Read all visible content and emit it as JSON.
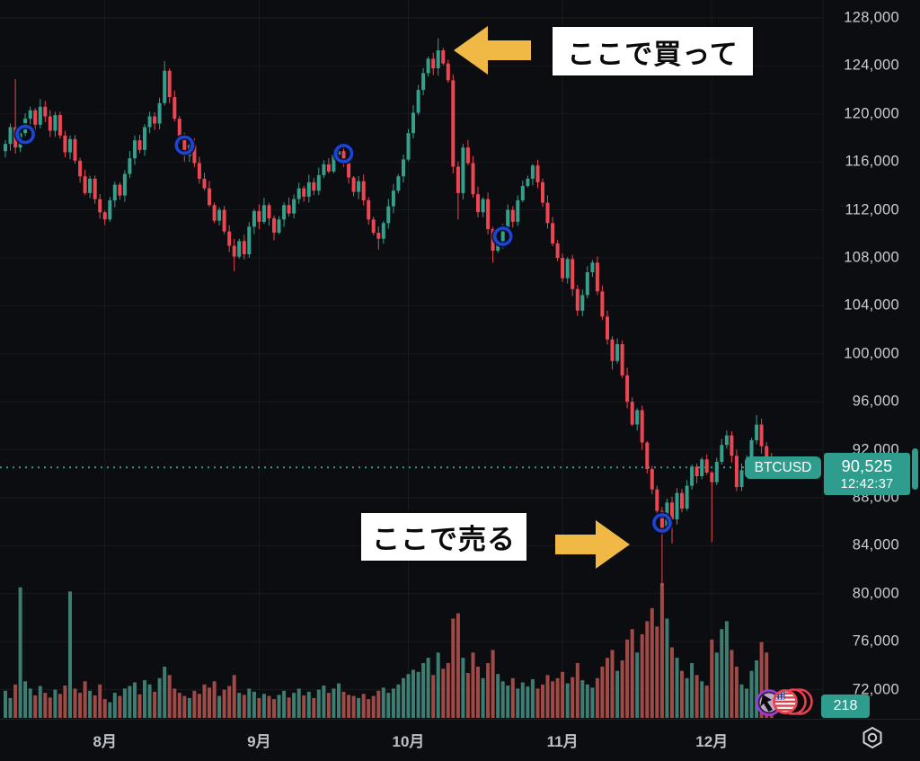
{
  "colors": {
    "background": "#0c0d10",
    "grid": "rgba(255,255,255,0.055)",
    "candle_up": "#34a08c",
    "candle_down": "#ec4652",
    "volume_up": "#3e7d72",
    "volume_down": "#9f4a47",
    "accent_teal": "#2e9d8e",
    "marker_blue": "#1c46d2",
    "arrow_gold": "#f0b946",
    "axis_text": "#c9ccd1",
    "price_line": "#2e9d8e"
  },
  "price_label": {
    "symbol": "BTCUSD",
    "price": "90,525",
    "countdown": "12:42:37"
  },
  "volume_badge": "218",
  "annotations": {
    "buy": "ここで買って",
    "sell": "ここで売る"
  },
  "chart_data": {
    "type": "candlestick",
    "symbol": "BTCUSD",
    "current_price": 90525,
    "current_volume": 218,
    "grid": true,
    "y_axis": {
      "min": 72000,
      "max": 128000,
      "tick_step": 4000,
      "tick_labels": [
        "128,000",
        "124,000",
        "120,000",
        "116,000",
        "112,000",
        "108,000",
        "104,000",
        "100,000",
        "96,000",
        "92,000",
        "88,000",
        "84,000",
        "80,000",
        "76,000",
        "72,000"
      ]
    },
    "x_axis": {
      "month_labels": [
        {
          "label": "8月",
          "day": 20
        },
        {
          "label": "9月",
          "day": 51
        },
        {
          "label": "10月",
          "day": 81
        },
        {
          "label": "11月",
          "day": 112
        },
        {
          "label": "12月",
          "day": 142
        }
      ]
    },
    "closes": [
      117500,
      118900,
      117200,
      118400,
      119600,
      120300,
      119100,
      120600,
      119800,
      118600,
      119900,
      118200,
      116800,
      117900,
      116100,
      114800,
      113400,
      114600,
      112900,
      111800,
      111200,
      112800,
      114100,
      113200,
      115000,
      116300,
      117800,
      117000,
      118900,
      119800,
      119200,
      120900,
      123600,
      121400,
      119600,
      118100,
      116500,
      117400,
      115900,
      114600,
      113800,
      112400,
      111100,
      112000,
      110200,
      109000,
      108100,
      109400,
      108300,
      110600,
      111900,
      111000,
      112400,
      111300,
      110100,
      111200,
      112400,
      111700,
      112900,
      113800,
      113100,
      114300,
      113600,
      114900,
      115800,
      115200,
      116600,
      116900,
      115900,
      114700,
      113500,
      114400,
      112800,
      111200,
      110100,
      109600,
      110900,
      112300,
      113600,
      114800,
      116200,
      118400,
      120100,
      122000,
      123400,
      124600,
      123800,
      125300,
      124200,
      122800,
      115600,
      113400,
      117200,
      115900,
      113300,
      111800,
      112900,
      110400,
      108600,
      109200,
      110500,
      112000,
      111000,
      112800,
      114000,
      114600,
      115700,
      114300,
      112600,
      110900,
      109200,
      108000,
      106300,
      107900,
      105400,
      103600,
      104900,
      106800,
      107600,
      105200,
      103100,
      101200,
      99400,
      100800,
      98200,
      96000,
      94100,
      95300,
      92600,
      90400,
      88700,
      86900,
      85300,
      87600,
      86200,
      88400,
      87100,
      89000,
      90600,
      89800,
      91200,
      90100,
      89300,
      91000,
      92400,
      93200,
      91500,
      88900,
      90300,
      91100,
      92800,
      94100,
      92300,
      91200,
      90525
    ],
    "volumes": [
      520,
      380,
      640,
      2500,
      700,
      560,
      430,
      610,
      480,
      390,
      540,
      460,
      620,
      2420,
      560,
      480,
      700,
      520,
      430,
      640,
      360,
      300,
      480,
      420,
      560,
      610,
      680,
      450,
      720,
      640,
      500,
      760,
      980,
      820,
      560,
      480,
      420,
      380,
      520,
      460,
      640,
      580,
      700,
      420,
      540,
      610,
      820,
      480,
      440,
      560,
      500,
      380,
      460,
      420,
      360,
      440,
      520,
      390,
      480,
      560,
      430,
      500,
      380,
      540,
      620,
      480,
      560,
      660,
      500,
      440,
      420,
      380,
      460,
      360,
      420,
      520,
      580,
      480,
      560,
      640,
      760,
      840,
      920,
      880,
      1050,
      1150,
      820,
      1250,
      940,
      1050,
      1900,
      2000,
      1150,
      860,
      1250,
      980,
      760,
      1050,
      1300,
      840,
      700,
      620,
      760,
      560,
      680,
      600,
      740,
      560,
      640,
      820,
      700,
      760,
      880,
      660,
      780,
      1050,
      720,
      640,
      580,
      760,
      980,
      1150,
      1300,
      900,
      1100,
      1500,
      1700,
      1250,
      1600,
      1850,
      2100,
      1750,
      2580,
      1900,
      1350,
      1150,
      900,
      760,
      1050,
      820,
      700,
      620,
      1500,
      1250,
      1700,
      1850,
      1300,
      980,
      640,
      560,
      900,
      1100,
      1450,
      1250,
      218
    ],
    "wick_overrides": {
      "2": {
        "high": 122900
      },
      "32": {
        "high": 124400
      },
      "46": {
        "low": 106900
      },
      "75": {
        "low": 108700
      },
      "87": {
        "high": 126300
      },
      "91": {
        "low": 111200
      },
      "98": {
        "low": 107600
      },
      "122": {
        "low": 98700
      },
      "132": {
        "low": 80600
      },
      "134": {
        "low": 84200
      },
      "142": {
        "low": 84300
      },
      "151": {
        "high": 94900
      }
    },
    "markers": [
      {
        "day": 4,
        "price": 118300
      },
      {
        "day": 36,
        "price": 117400
      },
      {
        "day": 68,
        "price": 116700
      },
      {
        "day": 100,
        "price": 109800
      },
      {
        "day": 132,
        "price": 85900
      }
    ]
  }
}
